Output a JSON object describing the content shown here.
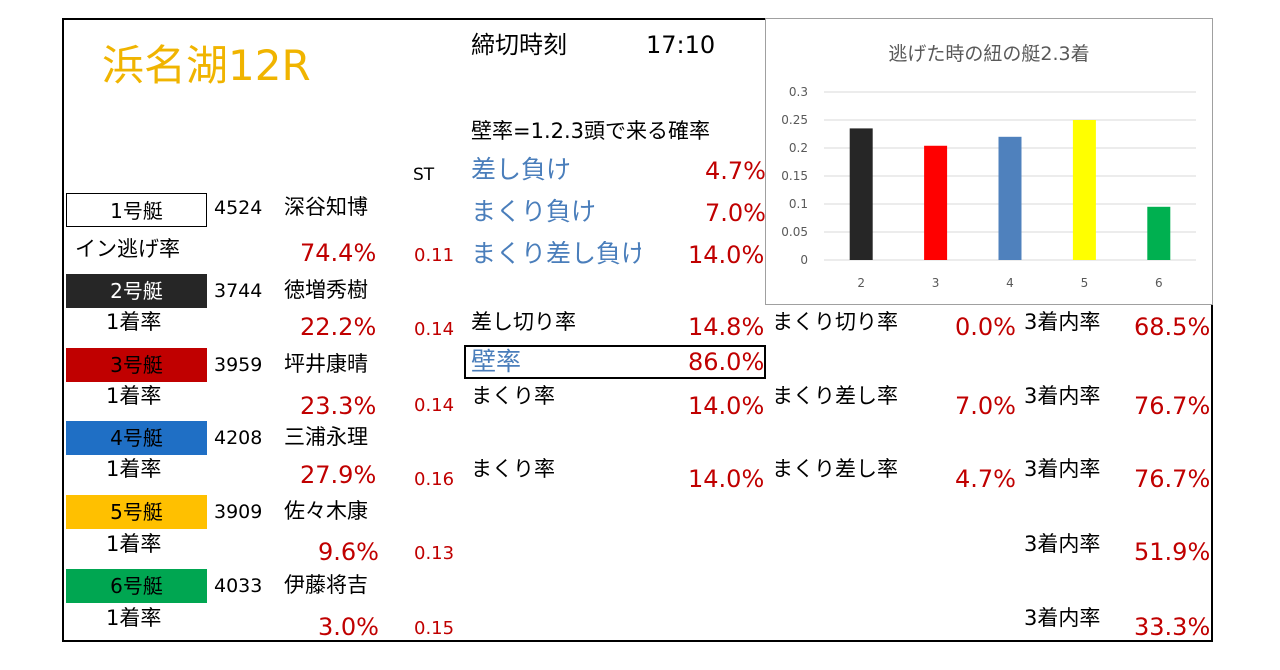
{
  "title": "浜名湖12R",
  "deadline": {
    "label": "締切時刻",
    "time": "17:10"
  },
  "wall_header": "壁率=1.2.3頭で来る確率",
  "st_label": "ST",
  "rates": [
    {
      "label": "差し負け",
      "value": "4.7%"
    },
    {
      "label": "まくり負け",
      "value": "7.0%"
    },
    {
      "label": "まくり差し負け",
      "value": "14.0%"
    }
  ],
  "boats": [
    {
      "label": "1号艇",
      "bg": "#ffffff",
      "fg": "#000000",
      "reg": "4524",
      "name": "深谷知博",
      "rate_label": "イン逃げ率",
      "rate": "74.4%",
      "st": "0.11"
    },
    {
      "label": "2号艇",
      "bg": "#262626",
      "fg": "#ffffff",
      "reg": "3744",
      "name": "徳増秀樹",
      "rate_label": "1着率",
      "rate": "22.2%",
      "st": "0.14"
    },
    {
      "label": "3号艇",
      "bg": "#c00000",
      "fg": "#000000",
      "reg": "3959",
      "name": "坪井康晴",
      "rate_label": "1着率",
      "rate": "23.3%",
      "st": "0.14"
    },
    {
      "label": "4号艇",
      "bg": "#1f6fc5",
      "fg": "#000000",
      "reg": "4208",
      "name": "三浦永理",
      "rate_label": "1着率",
      "rate": "27.9%",
      "st": "0.16"
    },
    {
      "label": "5号艇",
      "bg": "#ffc000",
      "fg": "#000000",
      "reg": "3909",
      "name": "佐々木康",
      "rate_label": "1着率",
      "rate": "9.6%",
      "st": "0.13"
    },
    {
      "label": "6号艇",
      "bg": "#00a651",
      "fg": "#000000",
      "reg": "4033",
      "name": "伊藤将吉",
      "rate_label": "1着率",
      "rate": "3.0%",
      "st": "0.15"
    }
  ],
  "boat2_stats": {
    "sashikiri_label": "差し切り率",
    "sashikiri": "14.8%",
    "makurikiri_label": "まくり切り率",
    "makurikiri": "0.0%",
    "top3_label": "3着内率",
    "top3": "68.5%"
  },
  "wall": {
    "label": "壁率",
    "value": "86.0%"
  },
  "boat3_stats": {
    "makuri_label": "まくり率",
    "makuri": "14.0%",
    "makurisashi_label": "まくり差し率",
    "makurisashi": "7.0%",
    "top3_label": "3着内率",
    "top3": "76.7%"
  },
  "boat4_stats": {
    "makuri_label": "まくり率",
    "makuri": "14.0%",
    "makurisashi_label": "まくり差し率",
    "makurisashi": "4.7%",
    "top3_label": "3着内率",
    "top3": "76.7%"
  },
  "boat5_stats": {
    "top3_label": "3着内率",
    "top3": "51.9%"
  },
  "boat6_stats": {
    "top3_label": "3着内率",
    "top3": "33.3%"
  },
  "chart_data": {
    "type": "bar",
    "title": "逃げた時の紐の艇2.3着",
    "categories": [
      "2",
      "3",
      "4",
      "5",
      "6"
    ],
    "values": [
      0.235,
      0.204,
      0.22,
      0.25,
      0.095
    ],
    "colors": [
      "#262626",
      "#ff0000",
      "#4f81bd",
      "#ffff00",
      "#00b050"
    ],
    "yticks": [
      "0",
      "0.05",
      "0.1",
      "0.15",
      "0.2",
      "0.25",
      "0.3"
    ],
    "ylim": [
      0,
      0.3
    ],
    "grid": true,
    "xlabel": "",
    "ylabel": ""
  }
}
